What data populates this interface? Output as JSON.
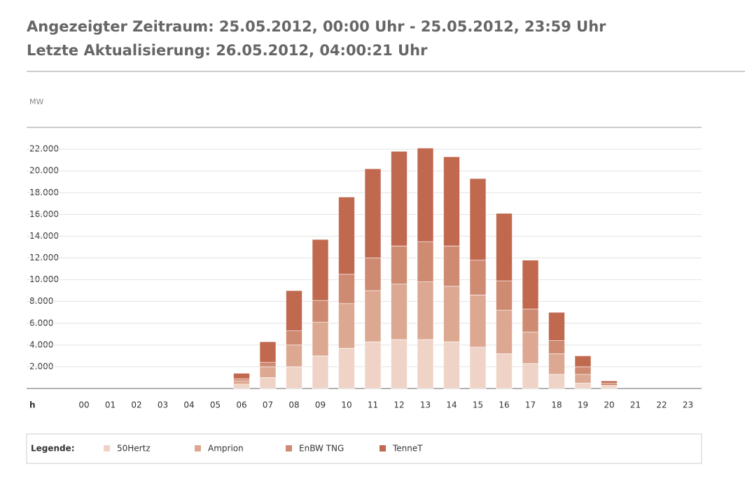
{
  "header": {
    "period": "Angezeigter Zeitraum: 25.05.2012, 00:00 Uhr - 25.05.2012, 23:59 Uhr",
    "updated": "Letzte Aktualisierung: 26.05.2012, 04:00:21 Uhr"
  },
  "chart_data": {
    "type": "stacked-bar",
    "y_label": "MW",
    "x_label": "h",
    "legend_title": "Legende:",
    "categories": [
      "00",
      "01",
      "02",
      "03",
      "04",
      "05",
      "06",
      "07",
      "08",
      "09",
      "10",
      "11",
      "12",
      "13",
      "14",
      "15",
      "16",
      "17",
      "18",
      "19",
      "20",
      "21",
      "22",
      "23"
    ],
    "series": [
      {
        "name": "50Hertz",
        "color": "#efd3c6",
        "values": [
          0,
          0,
          0,
          0,
          0,
          0,
          400,
          1000,
          2000,
          3000,
          3700,
          4300,
          4500,
          4500,
          4300,
          3800,
          3200,
          2300,
          1300,
          500,
          200,
          0,
          0,
          0
        ]
      },
      {
        "name": "Amprion",
        "color": "#dda892",
        "values": [
          0,
          0,
          0,
          0,
          0,
          0,
          300,
          1000,
          2000,
          3100,
          4100,
          4700,
          5100,
          5300,
          5100,
          4800,
          4000,
          2900,
          1900,
          800,
          100,
          0,
          0,
          0
        ]
      },
      {
        "name": "EnBW TNG",
        "color": "#cf8a72",
        "values": [
          0,
          0,
          0,
          0,
          0,
          0,
          200,
          400,
          1300,
          2000,
          2700,
          3000,
          3500,
          3700,
          3700,
          3200,
          2700,
          2100,
          1200,
          700,
          200,
          0,
          0,
          0
        ]
      },
      {
        "name": "TenneT",
        "color": "#c0694f",
        "values": [
          0,
          0,
          0,
          0,
          0,
          0,
          500,
          1900,
          3700,
          5600,
          7100,
          8200,
          8700,
          8600,
          8200,
          7500,
          6200,
          4500,
          2600,
          1000,
          200,
          0,
          0,
          0
        ]
      }
    ],
    "ylim": [
      0,
      24000
    ],
    "yticks": [
      {
        "value": 2000,
        "label": "2.000"
      },
      {
        "value": 4000,
        "label": "4.000"
      },
      {
        "value": 6000,
        "label": "6.000"
      },
      {
        "value": 8000,
        "label": "8.000"
      },
      {
        "value": 10000,
        "label": "10.000"
      },
      {
        "value": 12000,
        "label": "12.000"
      },
      {
        "value": 14000,
        "label": "14.000"
      },
      {
        "value": 16000,
        "label": "16.000"
      },
      {
        "value": 18000,
        "label": "18.000"
      },
      {
        "value": 20000,
        "label": "20.000"
      },
      {
        "value": 22000,
        "label": "22.000"
      }
    ],
    "grid": true
  }
}
